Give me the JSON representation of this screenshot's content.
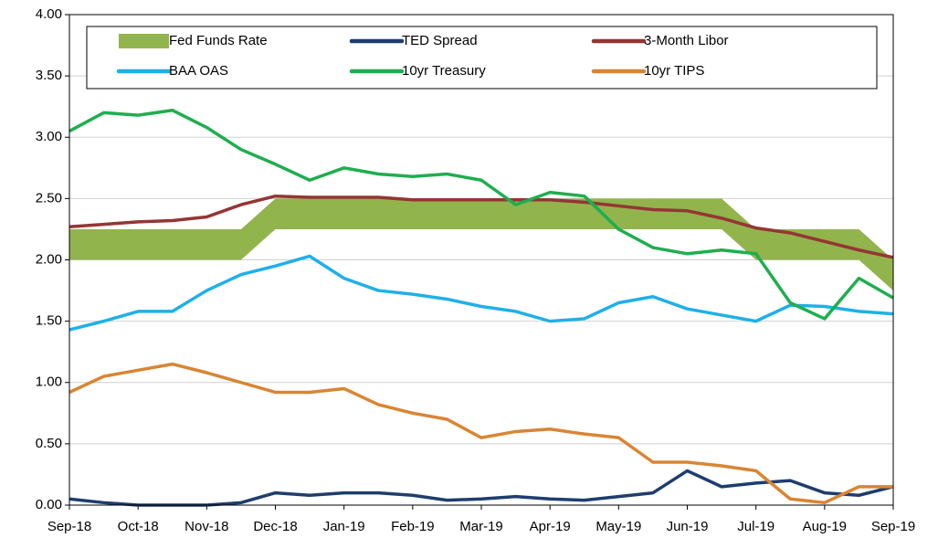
{
  "chart_data": {
    "type": "line",
    "categories": [
      "Sep-18",
      null,
      "Oct-18",
      null,
      "Nov-18",
      null,
      "Dec-18",
      null,
      "Jan-19",
      null,
      "Feb-19",
      null,
      "Mar-19",
      null,
      "Apr-19",
      null,
      "May-19",
      null,
      "Jun-19",
      null,
      "Jul-19",
      null,
      "Aug-19",
      null,
      "Sep-19"
    ],
    "ylim": [
      0,
      4
    ],
    "yticks": [
      {
        "value": 0,
        "label": "0.00"
      },
      {
        "value": 0.5,
        "label": "0.50"
      },
      {
        "value": 1,
        "label": "1.00"
      },
      {
        "value": 1.5,
        "label": "1.50"
      },
      {
        "value": 2,
        "label": "2.00"
      },
      {
        "value": 2.5,
        "label": "2.50"
      },
      {
        "value": 3,
        "label": "3.00"
      },
      {
        "value": 3.5,
        "label": "3.50"
      },
      {
        "value": 4,
        "label": "4.00"
      }
    ],
    "grid": true,
    "legend": "top",
    "band": {
      "name": "Fed Funds Rate",
      "color": "#92b44c",
      "low": [
        2,
        2,
        2,
        2,
        2,
        2,
        2.25,
        2.25,
        2.25,
        2.25,
        2.25,
        2.25,
        2.25,
        2.25,
        2.25,
        2.25,
        2.25,
        2.25,
        2.25,
        2.25,
        2,
        2,
        2,
        2,
        1.75
      ],
      "high": [
        2.25,
        2.25,
        2.25,
        2.25,
        2.25,
        2.25,
        2.5,
        2.5,
        2.5,
        2.5,
        2.5,
        2.5,
        2.5,
        2.5,
        2.5,
        2.5,
        2.5,
        2.5,
        2.5,
        2.5,
        2.25,
        2.25,
        2.25,
        2.25,
        2
      ]
    },
    "series": [
      {
        "name": "TED Spread",
        "color": "#1f3d6e",
        "values": [
          0.05,
          0.02,
          0,
          0,
          0,
          0.02,
          0.1,
          0.08,
          0.1,
          0.1,
          0.08,
          0.04,
          0.05,
          0.07,
          0.05,
          0.04,
          0.07,
          0.1,
          0.28,
          0.15,
          0.18,
          0.2,
          0.1,
          0.08,
          0.15
        ]
      },
      {
        "name": "3-Month Libor",
        "color": "#943634",
        "values": [
          2.27,
          2.29,
          2.31,
          2.32,
          2.35,
          2.45,
          2.52,
          2.51,
          2.51,
          2.51,
          2.49,
          2.49,
          2.49,
          2.49,
          2.49,
          2.47,
          2.44,
          2.41,
          2.4,
          2.34,
          2.26,
          2.22,
          2.15,
          2.08,
          2.02
        ]
      },
      {
        "name": "BAA OAS",
        "color": "#1fb0e8",
        "values": [
          1.43,
          1.5,
          1.58,
          1.58,
          1.75,
          1.88,
          1.95,
          2.03,
          1.85,
          1.75,
          1.72,
          1.68,
          1.62,
          1.58,
          1.5,
          1.52,
          1.65,
          1.7,
          1.6,
          1.55,
          1.5,
          1.63,
          1.62,
          1.58,
          1.56
        ]
      },
      {
        "name": "10yr Treasury",
        "color": "#1fae4f",
        "values": [
          3.05,
          3.2,
          3.18,
          3.22,
          3.08,
          2.9,
          2.78,
          2.65,
          2.75,
          2.7,
          2.68,
          2.7,
          2.65,
          2.45,
          2.55,
          2.52,
          2.25,
          2.1,
          2.05,
          2.08,
          2.05,
          1.65,
          1.52,
          1.85,
          1.69
        ]
      },
      {
        "name": "10yr TIPS",
        "color": "#d98533",
        "values": [
          0.92,
          1.05,
          1.1,
          1.15,
          1.08,
          1,
          0.92,
          0.92,
          0.95,
          0.82,
          0.75,
          0.7,
          0.55,
          0.6,
          0.62,
          0.58,
          0.55,
          0.35,
          0.35,
          0.32,
          0.28,
          0.05,
          0.02,
          0.15,
          0.15
        ]
      }
    ]
  }
}
